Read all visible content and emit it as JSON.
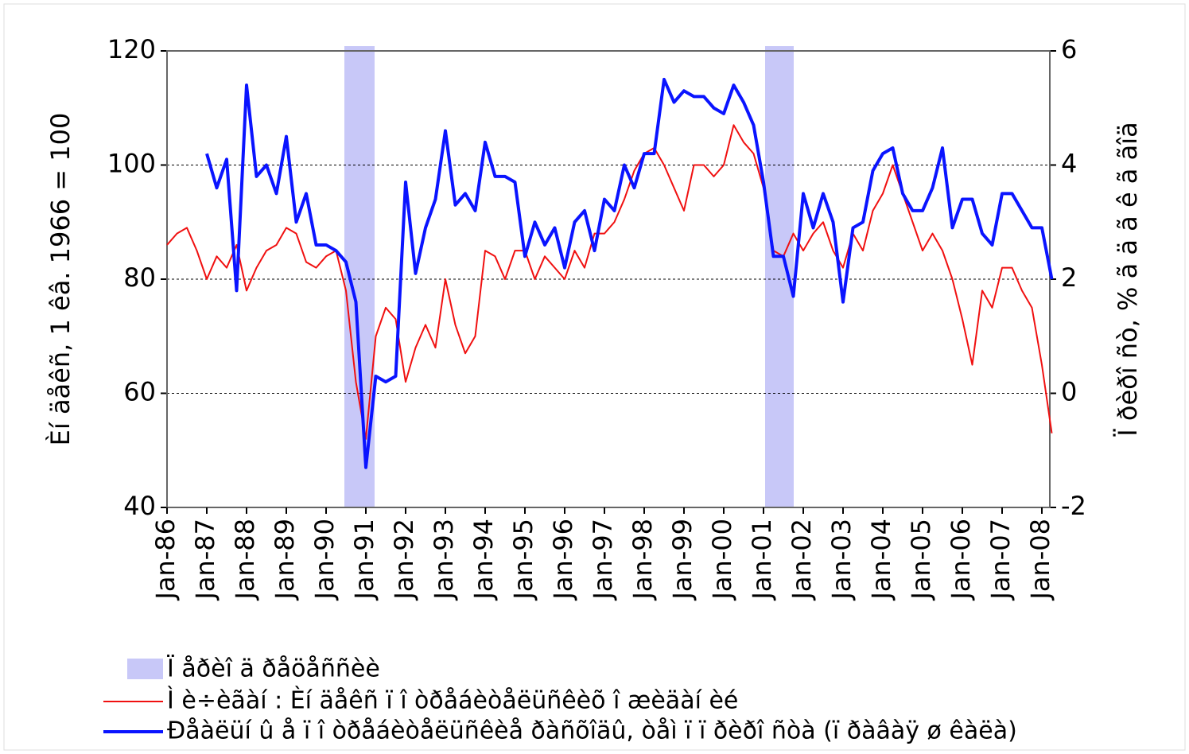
{
  "chart_data": {
    "type": "line",
    "ylabel": "Èí äåêñ, 1 êâ. 1966 = 100",
    "y2label": "Ï ðèðî ñò, % ã ä ã ê ã ãîä",
    "categories": [
      "Jan-86",
      null,
      null,
      null,
      "Jan-87",
      null,
      null,
      null,
      "Jan-88",
      null,
      null,
      null,
      "Jan-89",
      null,
      null,
      null,
      "Jan-90",
      null,
      null,
      null,
      "Jan-91",
      null,
      null,
      null,
      "Jan-92",
      null,
      null,
      null,
      "Jan-93",
      null,
      null,
      null,
      "Jan-94",
      null,
      null,
      null,
      "Jan-95",
      null,
      null,
      null,
      "Jan-96",
      null,
      null,
      null,
      "Jan-97",
      null,
      null,
      null,
      "Jan-98",
      null,
      null,
      null,
      "Jan-99",
      null,
      null,
      null,
      "Jan-00",
      null,
      null,
      null,
      "Jan-01",
      null,
      null,
      null,
      "Jan-02",
      null,
      null,
      null,
      "Jan-03",
      null,
      null,
      null,
      "Jan-04",
      null,
      null,
      null,
      "Jan-05",
      null,
      null,
      null,
      "Jan-06",
      null,
      null,
      null,
      "Jan-07",
      null,
      null,
      null,
      "Jan-08",
      null
    ],
    "recessions": {
      "name": "Ï åðèî ä ðåöåññèè",
      "color": "#c8c8f8",
      "spans": [
        [
          17.84,
          20.88
        ],
        [
          60.16,
          63.04
        ]
      ]
    },
    "series": [
      {
        "name": "Ì è÷èãàí : Èí äåêñ ï î òðåáèòåëüñêèõ î æèäàí èé",
        "color": "#f01010",
        "axis": "y",
        "values": [
          86,
          88,
          89,
          85,
          80,
          84,
          82,
          86,
          78,
          82,
          85,
          86,
          89,
          88,
          83,
          82,
          84,
          85,
          78,
          62,
          52,
          70,
          75,
          73,
          62,
          68,
          72,
          68,
          80,
          72,
          67,
          70,
          85,
          84,
          80,
          85,
          85,
          80,
          84,
          82,
          80,
          85,
          82,
          88,
          88,
          90,
          94,
          99,
          102,
          103,
          100,
          96,
          92,
          100,
          100,
          98,
          100,
          107,
          104,
          102,
          96,
          85,
          84,
          88,
          85,
          88,
          90,
          85,
          82,
          88,
          85,
          92,
          95,
          100,
          95,
          90,
          85,
          88,
          85,
          80,
          73,
          65,
          78,
          75,
          82,
          82,
          78,
          75,
          65,
          53
        ]
      },
      {
        "name": "Ðåàëüí û å ï î òðåáèòåëüñêèå ðàñõîäû, òåì ï ï ðèðî ñòà (ï ðàâàÿ ø êàëà)",
        "color": "#0a14ff",
        "axis": "y2",
        "values": [
          null,
          null,
          null,
          null,
          4.2,
          3.6,
          4.1,
          1.8,
          5.4,
          3.8,
          4.0,
          3.5,
          4.5,
          3.0,
          3.5,
          2.6,
          2.6,
          2.5,
          2.3,
          1.6,
          -1.3,
          0.3,
          0.2,
          0.3,
          3.7,
          2.1,
          2.9,
          3.4,
          4.6,
          3.3,
          3.5,
          3.2,
          4.4,
          3.8,
          3.8,
          3.7,
          2.4,
          3.0,
          2.6,
          2.9,
          2.2,
          3.0,
          3.2,
          2.5,
          3.4,
          3.2,
          4.0,
          3.6,
          4.2,
          4.2,
          5.5,
          5.1,
          5.3,
          5.2,
          5.2,
          5.0,
          4.9,
          5.4,
          5.1,
          4.7,
          3.7,
          2.4,
          2.4,
          1.7,
          3.5,
          2.9,
          3.5,
          3.0,
          1.6,
          2.9,
          3.0,
          3.9,
          4.2,
          4.3,
          3.5,
          3.2,
          3.2,
          3.6,
          4.3,
          2.9,
          3.4,
          3.4,
          2.8,
          2.6,
          3.5,
          3.5,
          3.2,
          2.9,
          2.9,
          2.0
        ]
      }
    ],
    "ylim": [
      40,
      120
    ],
    "yticks": [
      40,
      60,
      80,
      100,
      120
    ],
    "y2lim": [
      -2,
      6
    ],
    "y2ticks": [
      -2,
      0,
      2,
      4,
      6
    ],
    "grid": true
  }
}
